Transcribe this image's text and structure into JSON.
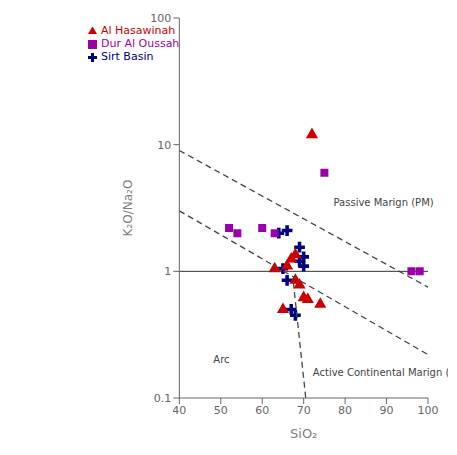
{
  "chart_data": {
    "type": "scatter",
    "xlabel": "SiO₂",
    "ylabel": "K₂O/Na₂O",
    "log": "y",
    "legend": "upper left",
    "grid": false,
    "xlim": [
      40,
      100
    ],
    "ylim": [
      0.1,
      100
    ],
    "xticks": [
      40,
      50,
      60,
      70,
      80,
      90,
      100
    ],
    "yticks": [
      0.1,
      1,
      10,
      100
    ],
    "series": [
      {
        "name": "Sirt Basin",
        "type": "scatter",
        "marker": "plus",
        "color": "#000080",
        "x": [
          64,
          65,
          66,
          67,
          68,
          69,
          69,
          70,
          70,
          66
        ],
        "values": [
          2.0,
          1.05,
          0.85,
          0.5,
          0.45,
          1.55,
          1.2,
          1.1,
          1.3,
          2.1
        ]
      },
      {
        "name": "Dur Al Oussah",
        "type": "scatter",
        "marker": "square",
        "color": "#9900AA",
        "x": [
          52,
          54,
          60,
          63,
          75,
          96,
          98
        ],
        "values": [
          2.2,
          2.0,
          2.2,
          2.0,
          6.0,
          1.0,
          1.0
        ]
      },
      {
        "name": "Al Hasawinah",
        "type": "scatter",
        "marker": "triangle",
        "color": "#CC0000",
        "x": [
          63,
          65,
          66,
          67,
          68,
          68,
          69,
          70,
          71,
          74,
          72
        ],
        "values": [
          1.05,
          0.5,
          1.1,
          1.25,
          1.35,
          0.85,
          0.78,
          0.62,
          0.6,
          0.55,
          12.0
        ]
      },
      {
        "type": "line",
        "line_style": "dashed",
        "color": "#444444",
        "x": [
          40,
          100
        ],
        "values": [
          9.0,
          0.75
        ]
      },
      {
        "type": "line",
        "line_style": "dashed",
        "color": "#444444",
        "x": [
          40,
          100
        ],
        "values": [
          3.0,
          0.22
        ]
      },
      {
        "type": "line",
        "line_style": "dashed",
        "color": "#444444",
        "x": [
          67.5,
          70.5
        ],
        "values": [
          0.82,
          0.1
        ]
      }
    ],
    "hlines": [
      {
        "y": 1.0,
        "color": "#333333"
      }
    ],
    "annotations": [
      {
        "text": "Arc",
        "x": 47,
        "y": 0.2
      },
      {
        "text": "Passive Marign (PM)",
        "x": 76,
        "y": 3.5
      },
      {
        "text": "Active Continental Marign (ACM)",
        "x": 71,
        "y": 0.16
      }
    ]
  }
}
